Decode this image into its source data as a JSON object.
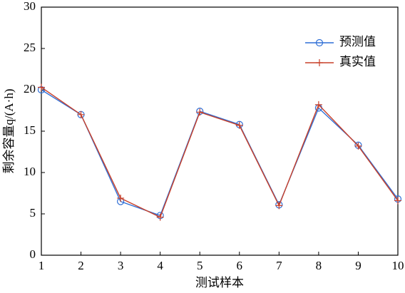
{
  "chart_data": {
    "type": "line",
    "x": [
      1,
      2,
      3,
      4,
      5,
      6,
      7,
      8,
      9,
      10
    ],
    "series": [
      {
        "name": "预测值",
        "color": "#2f6fd6",
        "marker": "circle",
        "values": [
          20.0,
          17.0,
          6.5,
          4.8,
          17.4,
          15.8,
          6.1,
          17.8,
          13.3,
          6.8
        ]
      },
      {
        "name": "真实值",
        "color": "#c8402a",
        "marker": "plus",
        "values": [
          20.3,
          17.0,
          6.9,
          4.6,
          17.3,
          15.7,
          6.0,
          18.2,
          13.2,
          6.6
        ]
      }
    ],
    "xlabel": "测试样本",
    "ylabel": "剩余容量q/(A·h)",
    "xlim": [
      1,
      10
    ],
    "xticks": [
      1,
      2,
      3,
      4,
      5,
      6,
      7,
      8,
      9,
      10
    ],
    "ylim": [
      0,
      30
    ],
    "yticks": [
      0,
      5,
      10,
      15,
      20,
      25,
      30
    ],
    "legend": "upper right",
    "grid": false
  }
}
